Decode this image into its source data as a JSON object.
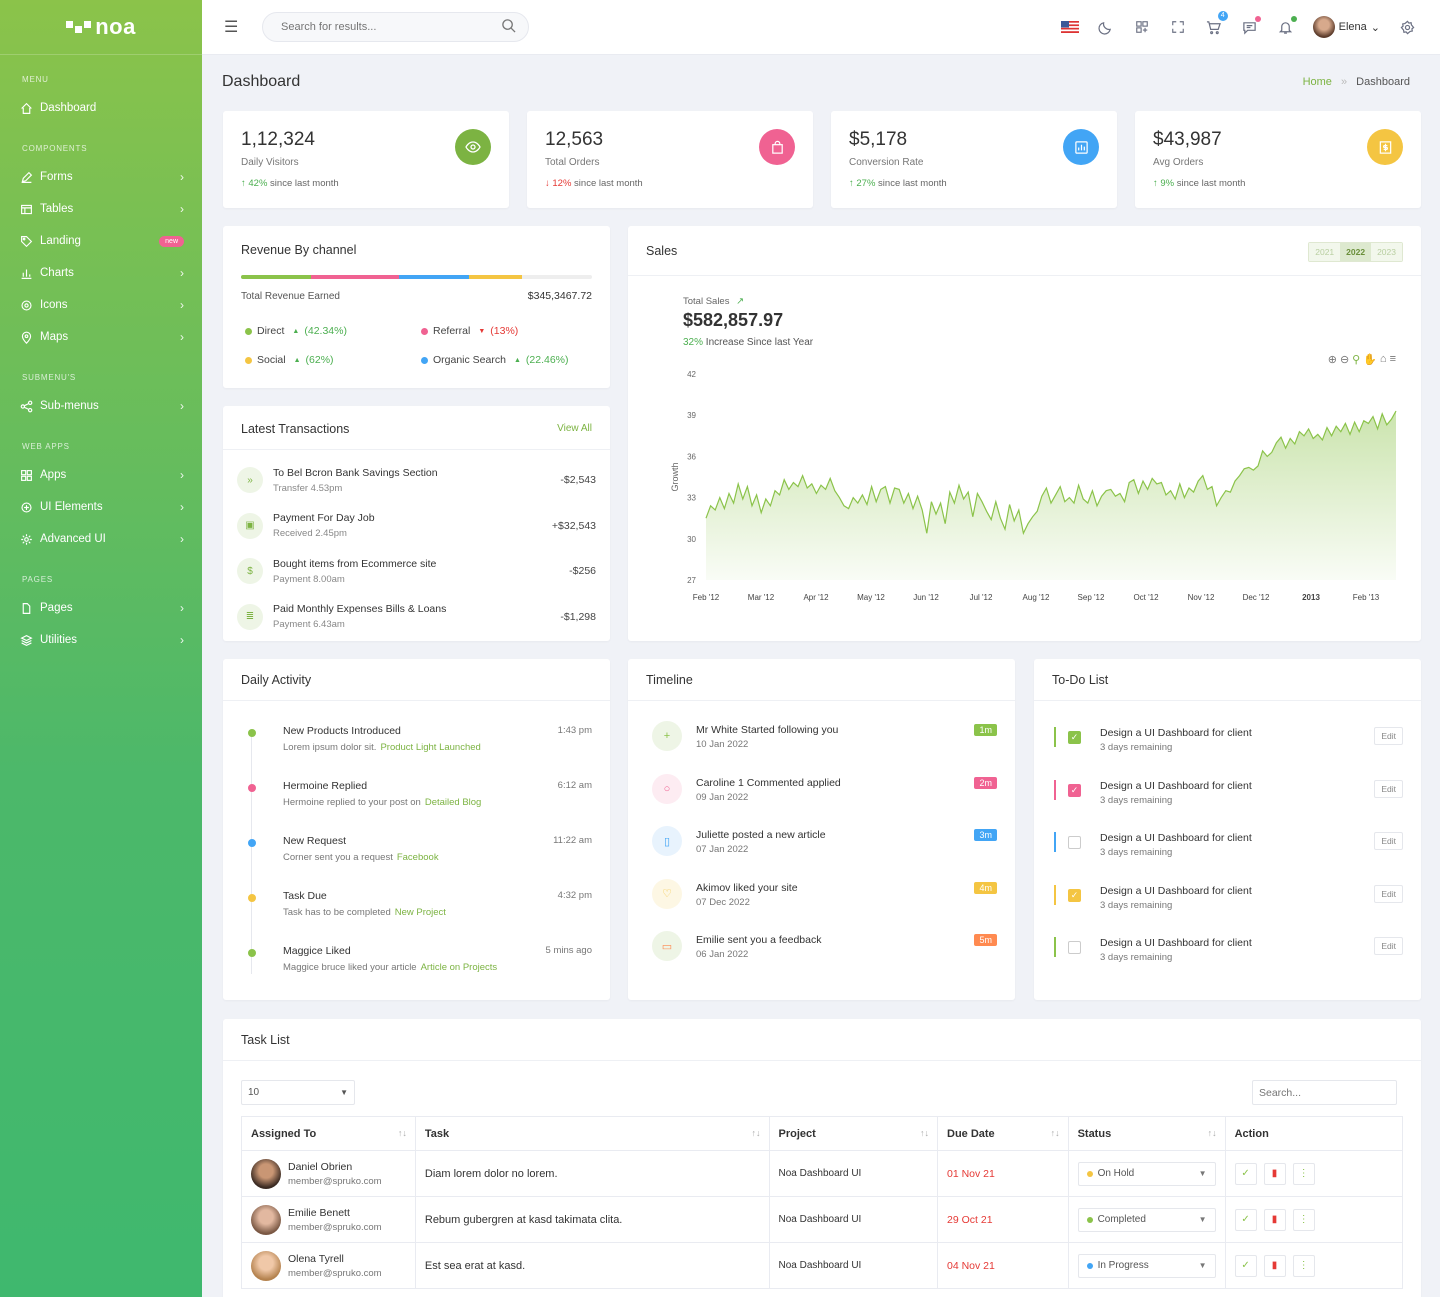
{
  "brand": {
    "name": "noa"
  },
  "sidebar": {
    "sections": {
      "menu": "MENU",
      "components": "COMPONENTS",
      "submenus": "SUBMENU'S",
      "webapps": "WEB APPS",
      "pages": "PAGES"
    },
    "items": [
      {
        "label": "Dashboard",
        "icon": "home-icon"
      },
      {
        "label": "Forms",
        "icon": "edit-icon"
      },
      {
        "label": "Tables",
        "icon": "table-icon"
      },
      {
        "label": "Landing",
        "icon": "tag-icon",
        "badge": "new"
      },
      {
        "label": "Charts",
        "icon": "bar-chart-icon"
      },
      {
        "label": "Icons",
        "icon": "gear-icon"
      },
      {
        "label": "Maps",
        "icon": "map-pin-icon"
      },
      {
        "label": "Sub-menus",
        "icon": "share-icon"
      },
      {
        "label": "Apps",
        "icon": "grid-icon"
      },
      {
        "label": "UI Elements",
        "icon": "layers-icon"
      },
      {
        "label": "Advanced UI",
        "icon": "settings-icon"
      },
      {
        "label": "Pages",
        "icon": "file-icon"
      },
      {
        "label": "Utilities",
        "icon": "stack-icon"
      }
    ]
  },
  "topbar": {
    "search_placeholder": "Search for results...",
    "user_name": "Elena",
    "cart_count": "4"
  },
  "page": {
    "title": "Dashboard",
    "crumb_home": "Home",
    "crumb_sep": "»",
    "crumb_current": "Dashboard"
  },
  "stats": [
    {
      "value": "1,12,324",
      "label": "Daily Visitors",
      "arrow": "↑",
      "pct": "42%",
      "suffix": "since last month",
      "color": "#7cb342",
      "icon": "eye-icon",
      "trend": "up"
    },
    {
      "value": "12,563",
      "label": "Total Orders",
      "arrow": "↓",
      "pct": "12%",
      "suffix": "since last month",
      "color": "#f06292",
      "icon": "bag-icon",
      "trend": "down"
    },
    {
      "value": "$5,178",
      "label": "Conversion Rate",
      "arrow": "↑",
      "pct": "27%",
      "suffix": "since last month",
      "color": "#42a5f5",
      "icon": "chart-icon",
      "trend": "up"
    },
    {
      "value": "$43,987",
      "label": "Avg Orders",
      "arrow": "↑",
      "pct": "9%",
      "suffix": "since last month",
      "color": "#f4c542",
      "icon": "dollar-icon",
      "trend": "up"
    }
  ],
  "revenue": {
    "title": "Revenue By channel",
    "earned_label": "Total Revenue Earned",
    "earned_value": "$345,3467.72",
    "segments": [
      {
        "color": "#8bc34a"
      },
      {
        "color": "#f06292"
      },
      {
        "color": "#42a5f5"
      },
      {
        "color": "#f4c542"
      }
    ],
    "channels": [
      {
        "name": "Direct",
        "pct": "(42.34%)",
        "color": "#8bc34a",
        "arrow": "▲"
      },
      {
        "name": "Referral",
        "pct": "(13%)",
        "color": "#f06292",
        "arrow": "▼"
      },
      {
        "name": "Social",
        "pct": "(62%)",
        "color": "#f4c542",
        "arrow": "▲"
      },
      {
        "name": "Organic Search",
        "pct": "(22.46%)",
        "color": "#42a5f5",
        "arrow": "▲"
      }
    ]
  },
  "transactions": {
    "title": "Latest Transactions",
    "view_all": "View All",
    "items": [
      {
        "title": "To Bel Bcron Bank Savings Section",
        "sub": "Transfer 4.53pm",
        "amount": "-$2,543",
        "icon": "»"
      },
      {
        "title": "Payment For  Day Job",
        "sub": "Received 2.45pm",
        "amount": "+$32,543",
        "icon": "▣"
      },
      {
        "title": "Bought items from Ecommerce site",
        "sub": "Payment 8.00am",
        "amount": "-$256",
        "icon": "$"
      },
      {
        "title": "Paid Monthly Expenses Bills & Loans",
        "sub": "Payment 6.43am",
        "amount": "-$1,298",
        "icon": "≣"
      }
    ]
  },
  "sales": {
    "title": "Sales",
    "years": [
      "2021",
      "2022",
      "2023"
    ],
    "active_year": "2022",
    "total_label": "Total Sales",
    "total_value": "$582,857.97",
    "increase_pct": "32%",
    "increase_text": "Increase Since last Year"
  },
  "chart_data": {
    "type": "area",
    "ylabel": "Growth",
    "ylim": [
      27,
      42
    ],
    "yticks": [
      27,
      30,
      33,
      36,
      39,
      42
    ],
    "xticks": [
      "Feb '12",
      "Mar '12",
      "Apr '12",
      "May '12",
      "Jun '12",
      "Jul '12",
      "Aug '12",
      "Sep '12",
      "Oct '12",
      "Nov '12",
      "Dec '12",
      "2013",
      "Feb '13"
    ],
    "color": "#8bc34a",
    "series": [
      {
        "values": [
          31.5,
          32.4,
          32.1,
          33.0,
          32.2,
          33.3,
          32.6,
          34.0,
          32.9,
          33.8,
          32.4,
          33.2,
          31.9,
          32.9,
          32.4,
          33.5,
          33.2,
          34.3,
          33.6,
          34.1,
          33.8,
          34.6,
          33.7,
          34.0,
          33.3,
          33.9,
          33.6,
          34.4,
          33.5,
          33.0,
          32.4,
          32.2,
          33.0,
          32.6,
          33.2,
          32.5,
          33.8,
          32.7,
          33.6,
          33.8,
          32.6,
          33.7,
          33.6,
          32.6,
          33.3,
          32.2,
          33.1,
          32.1,
          30.4,
          32.7,
          31.8,
          32.6,
          31.1,
          33.4,
          32.6,
          33.9,
          32.9,
          33.4,
          31.6,
          33.3,
          32.7,
          32.0,
          31.4,
          32.7,
          31.5,
          30.7,
          32.5,
          31.3,
          32.1,
          30.4,
          31.1,
          31.6,
          32.0,
          33.1,
          33.7,
          32.6,
          33.2,
          33.8,
          32.7,
          33.0,
          32.6,
          33.9,
          32.9,
          32.6,
          33.5,
          32.4,
          33.1,
          33.5,
          33.6,
          33.1,
          33.3,
          32.7,
          34.1,
          34.3,
          33.3,
          34.2,
          33.6,
          34.4,
          34.0,
          34.1,
          33.2,
          33.5,
          32.9,
          34.0,
          33.0,
          33.7,
          33.4,
          34.2,
          34.6,
          33.6,
          33.8,
          32.4,
          33.0,
          33.5,
          33.4,
          34.2,
          34.6,
          35.1,
          35.2,
          35.0,
          35.3,
          36.4,
          36.0,
          36.3,
          37.0,
          37.4,
          36.6,
          37.3,
          36.9,
          37.8,
          37.5,
          38.0,
          37.3,
          37.6,
          37.2,
          38.1,
          37.5,
          38.2,
          37.8,
          38.4,
          37.6,
          38.5,
          37.8,
          38.6,
          38.4,
          38.9,
          38.0,
          39.1,
          38.3,
          38.7,
          39.3
        ]
      }
    ]
  },
  "daily": {
    "title": "Daily Activity",
    "items": [
      {
        "title": "New Products Introduced",
        "sub": "Lorem ipsum dolor sit.",
        "link": "Product Light Launched",
        "time": "1:43 pm",
        "color": "#8bc34a"
      },
      {
        "title": "Hermoine Replied",
        "sub": "Hermoine replied to your post on",
        "link": "Detailed Blog",
        "time": "6:12 am",
        "color": "#f06292"
      },
      {
        "title": "New Request",
        "sub": "Corner sent you a request",
        "link": "Facebook",
        "time": "11:22 am",
        "color": "#42a5f5"
      },
      {
        "title": "Task Due",
        "sub": "Task has to be completed",
        "link": "New Project",
        "time": "4:32 pm",
        "color": "#f4c542"
      },
      {
        "title": "Maggice Liked",
        "sub": "Maggice bruce liked your article",
        "link": "Article on Projects",
        "time": "5 mins ago",
        "color": "#8bc34a"
      }
    ]
  },
  "timeline": {
    "title": "Timeline",
    "items": [
      {
        "title": "Mr White Started following you",
        "date": "10 Jan 2022",
        "badge": "1m",
        "color": "#8bc34a",
        "bg": "#eef5e6",
        "icon": "user-plus-icon",
        "glyph": "+"
      },
      {
        "title": "Caroline 1 Commented applied",
        "date": "09 Jan 2022",
        "badge": "2m",
        "color": "#f06292",
        "bg": "#fdecf2",
        "icon": "comment-icon",
        "glyph": "○"
      },
      {
        "title": "Juliette posted a new article",
        "date": "07 Jan 2022",
        "badge": "3m",
        "color": "#42a5f5",
        "bg": "#e8f3fd",
        "icon": "clipboard-icon",
        "glyph": "▯"
      },
      {
        "title": "Akimov liked your site",
        "date": "07 Dec 2022",
        "badge": "4m",
        "color": "#f4c542",
        "bg": "#fdf7e4",
        "icon": "thumbs-up-icon",
        "glyph": "♡"
      },
      {
        "title": "Emilie sent you a feedback",
        "date": "06 Jan 2022",
        "badge": "5m",
        "color": "#ff8a50",
        "bg": "#eef5e6",
        "icon": "book-icon",
        "glyph": "▭"
      }
    ]
  },
  "todo": {
    "title": "To-Do List",
    "edit_label": "Edit",
    "items": [
      {
        "title": "Design a UI Dashboard for client",
        "sub": "3 days remaining",
        "checked": true,
        "color": "#8bc34a"
      },
      {
        "title": "Design a UI Dashboard for client",
        "sub": "3 days remaining",
        "checked": true,
        "color": "#f06292"
      },
      {
        "title": "Design a UI Dashboard for client",
        "sub": "3 days remaining",
        "checked": false,
        "color": "#42a5f5"
      },
      {
        "title": "Design a UI Dashboard for client",
        "sub": "3 days remaining",
        "checked": true,
        "color": "#f4c542"
      },
      {
        "title": "Design a UI Dashboard for client",
        "sub": "3 days remaining",
        "checked": false,
        "color": "#8bc34a"
      }
    ]
  },
  "tasks": {
    "title": "Task List",
    "page_size": "10",
    "search_placeholder": "Search...",
    "headers": [
      "Assigned To",
      "Task",
      "Project",
      "Due Date",
      "Status",
      "Action"
    ],
    "rows": [
      {
        "name": "Daniel Obrien",
        "email": "member@spruko.com",
        "task": "Diam lorem dolor no lorem.",
        "project": "Noa Dashboard UI",
        "due": "01 Nov 21",
        "status": "On Hold",
        "status_color": "#f4c542"
      },
      {
        "name": "Emilie Benett",
        "email": "member@spruko.com",
        "task": "Rebum gubergren at kasd takimata clita.",
        "project": "Noa Dashboard UI",
        "due": "29 Oct 21",
        "status": "Completed",
        "status_color": "#8bc34a"
      },
      {
        "name": "Olena Tyrell",
        "email": "member@spruko.com",
        "task": "Est sea erat at kasd.",
        "project": "Noa Dashboard UI",
        "due": "04 Nov 21",
        "status": "In Progress",
        "status_color": "#42a5f5"
      }
    ]
  }
}
